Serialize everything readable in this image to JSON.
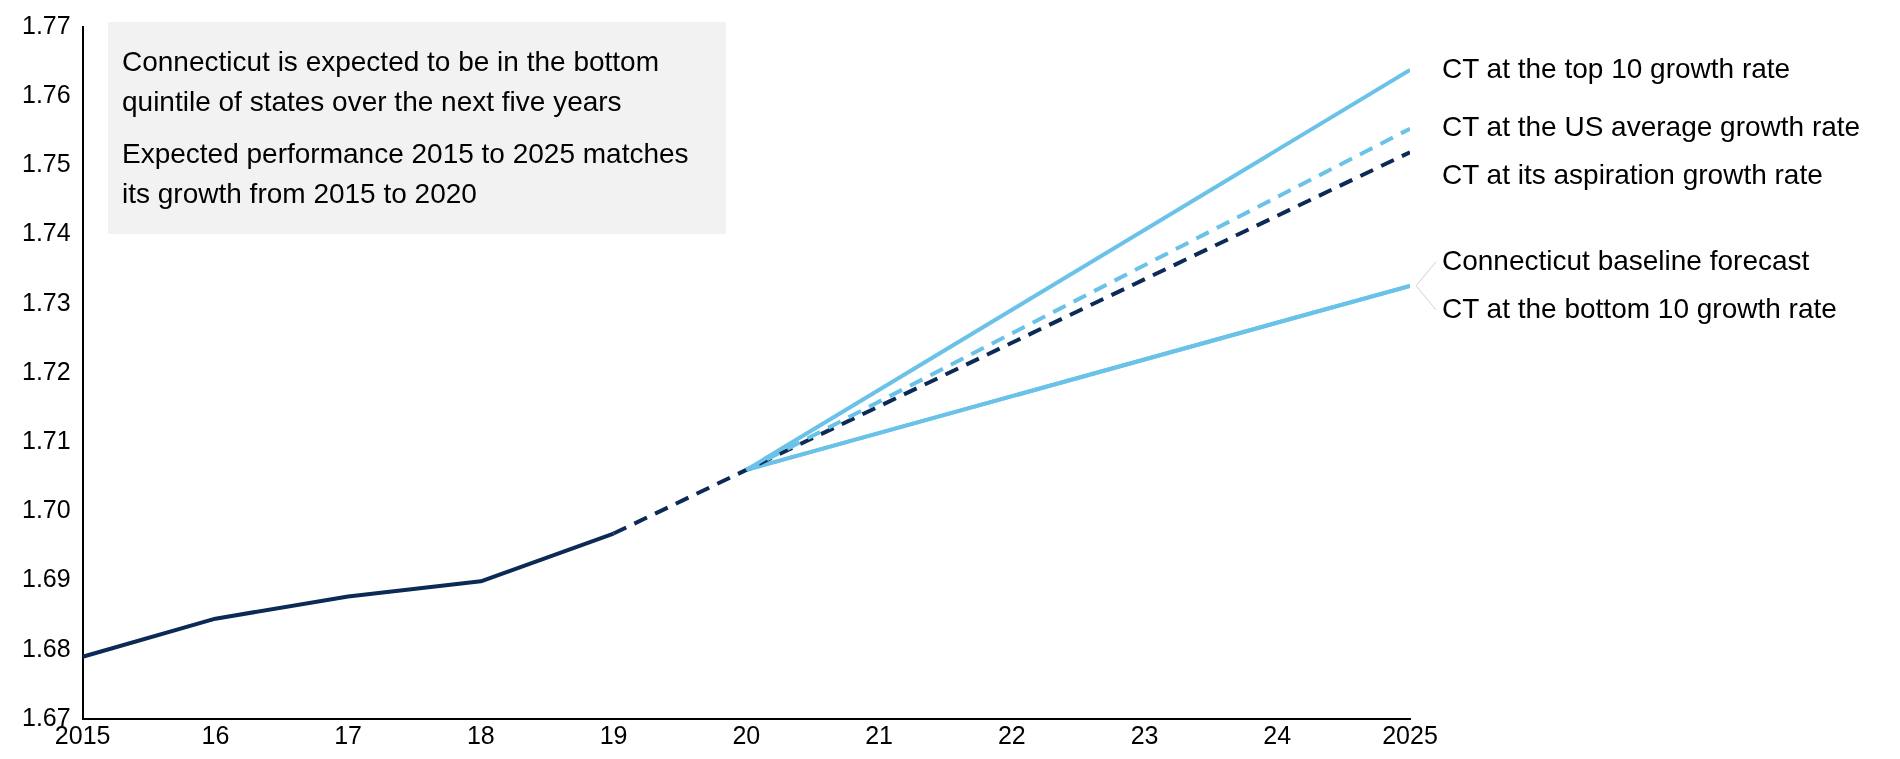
{
  "chart_data": {
    "type": "line",
    "xlim": [
      2015,
      2025
    ],
    "xticks": [
      2015,
      {
        "value": 2016,
        "label": "16"
      },
      {
        "value": 2017,
        "label": "17"
      },
      {
        "value": 2018,
        "label": "18"
      },
      {
        "value": 2019,
        "label": "19"
      },
      {
        "value": 2020,
        "label": "20"
      },
      {
        "value": 2021,
        "label": "21"
      },
      {
        "value": 2022,
        "label": "22"
      },
      {
        "value": 2023,
        "label": "23"
      },
      {
        "value": 2024,
        "label": "24"
      },
      2025
    ],
    "ylim": [
      1.67,
      1.77
    ],
    "yticks": [
      1.67,
      1.68,
      1.69,
      {
        "value": 1.7,
        "label": "1.70"
      },
      1.71,
      1.72,
      1.73,
      1.74,
      1.75,
      1.76,
      1.77
    ],
    "grid": false,
    "legend": false,
    "marker": "none",
    "annotations": [
      "Connecticut is expected to be in the bottom quintile of states over the next five years",
      "Expected performance 2015 to 2025 matches its growth from 2015 to 2020"
    ],
    "series": [
      {
        "color": "#0b2a55",
        "x": [
          2015,
          2016,
          2017,
          2018,
          2019
        ],
        "values": [
          1.679,
          1.6845,
          1.6877,
          1.6899,
          1.6968
        ],
        "line_style": "solid"
      },
      {
        "name": "CT at the top 10 growth rate",
        "color": "#6ac2e8",
        "x": [
          2020,
          2025
        ],
        "values": [
          1.706,
          1.7638
        ],
        "line_style": "solid"
      },
      {
        "name": "CT at the US average growth rate",
        "color": "#6ac2e8",
        "x": [
          2020,
          2025
        ],
        "values": [
          1.706,
          1.7553
        ],
        "line_style": "dashed"
      },
      {
        "name": "CT at its aspiration growth rate",
        "color": "#0b2a55",
        "x": [
          2019,
          2020,
          2025
        ],
        "values": [
          1.6968,
          1.706,
          1.7519
        ],
        "line_style": "dashed"
      },
      {
        "name": "Connecticut baseline forecast",
        "color": "#6ac2e8",
        "x": [
          2020,
          2025
        ],
        "values": [
          1.706,
          1.7326
        ],
        "line_style": "solid"
      },
      {
        "name": "CT at the bottom 10 growth rate",
        "color": "#6ac2e8",
        "x": [
          2020,
          2025
        ],
        "values": [
          1.706,
          1.7326
        ],
        "line_style": "solid"
      }
    ]
  }
}
